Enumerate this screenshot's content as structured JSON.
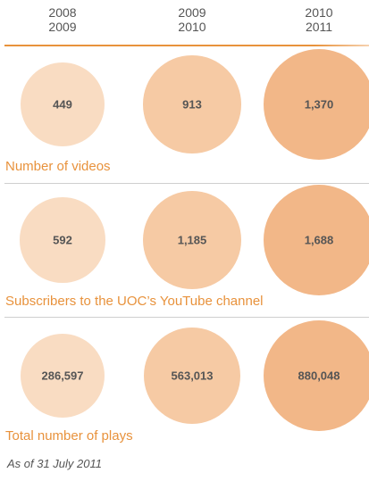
{
  "chart_data": {
    "type": "bubble",
    "categories": [
      "2008\n2009",
      "2009\n2010",
      "2010\n2011"
    ],
    "colors": [
      "#f9dcc2",
      "#f6caa4",
      "#f2b788"
    ],
    "series": [
      {
        "name": "Number of videos",
        "values": [
          449,
          913,
          1370
        ],
        "value_labels": [
          "449",
          "913",
          "1,370"
        ]
      },
      {
        "name": "Subscribers to the UOC’s YouTube channel",
        "values": [
          592,
          1185,
          1688
        ],
        "value_labels": [
          "592",
          "1,185",
          "1,688"
        ]
      },
      {
        "name": "Total number of plays",
        "values": [
          286597,
          563013,
          880048
        ],
        "value_labels": [
          "286,597",
          "563,013",
          "880,048"
        ]
      }
    ],
    "note": "As of 31 July 2011"
  }
}
